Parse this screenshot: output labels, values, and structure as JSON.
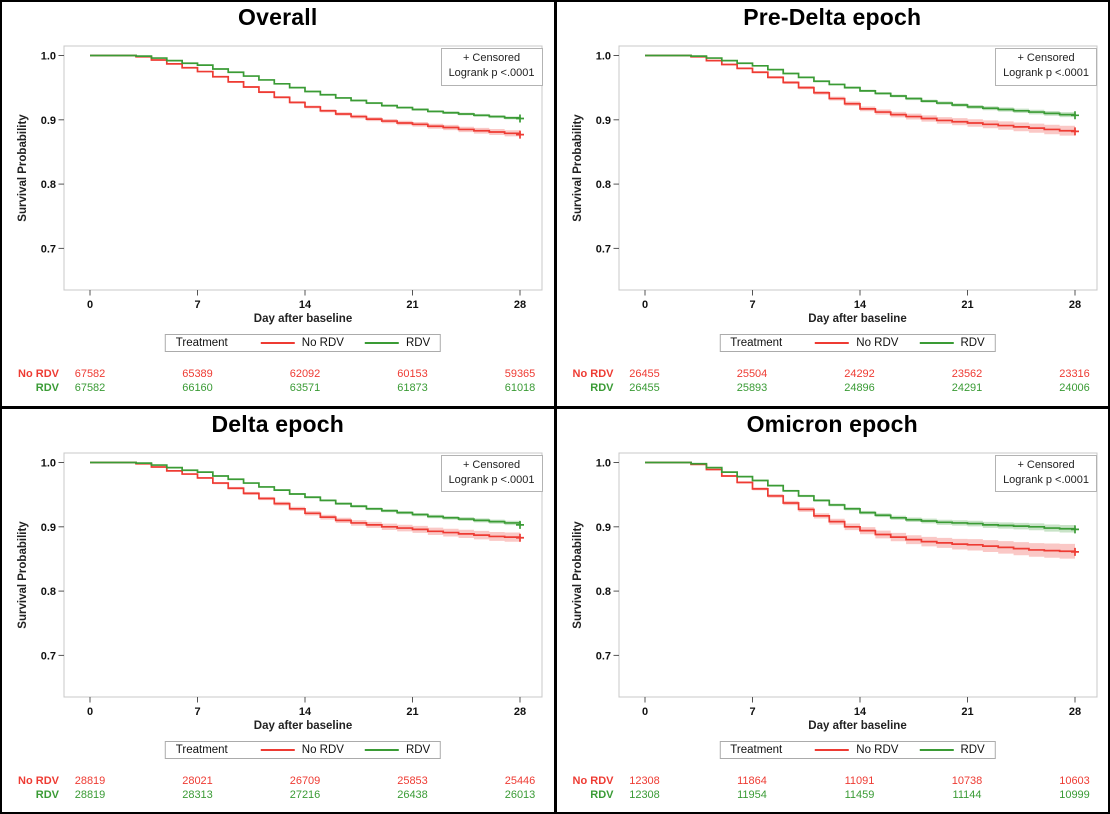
{
  "shared": {
    "censored_label": "+ Censored",
    "logrank_label": "Logrank p <.0001",
    "treatment_label": "Treatment",
    "xlabel": "Day after baseline",
    "ylabel": "Survival Probability",
    "x_tick_labels": [
      "0",
      "7",
      "14",
      "21",
      "28"
    ],
    "y_tick_labels": [
      "1.0",
      "0.9",
      "0.8",
      "0.7"
    ],
    "colors": {
      "no_rdv": "#ee3b33",
      "rdv": "#3a9b35",
      "frame": "#c8c8c8",
      "tick": "#555555"
    }
  },
  "chart_data": [
    {
      "type": "line",
      "title": "Overall",
      "xlabel": "Day after baseline",
      "ylabel": "Survival Probability",
      "x_ticks": [
        0,
        7,
        14,
        21,
        28
      ],
      "y_ticks": [
        1.0,
        0.9,
        0.8,
        0.7
      ],
      "logrank_p": "<.0001",
      "series": [
        {
          "name": "No RDV",
          "color": "#ee3b33",
          "ci_max_halfwidth": 0.005,
          "values": [
            1,
            1,
            1,
            0.998,
            0.993,
            0.987,
            0.981,
            0.975,
            0.967,
            0.959,
            0.951,
            0.943,
            0.935,
            0.927,
            0.92,
            0.914,
            0.909,
            0.905,
            0.901,
            0.898,
            0.895,
            0.893,
            0.89,
            0.888,
            0.885,
            0.883,
            0.881,
            0.879,
            0.877
          ],
          "at_risk": [
            67582,
            65389,
            62092,
            60153,
            59365
          ]
        },
        {
          "name": "RDV",
          "color": "#3a9b35",
          "ci_max_halfwidth": 0.0025,
          "values": [
            1,
            1,
            1,
            0.999,
            0.996,
            0.992,
            0.988,
            0.985,
            0.979,
            0.974,
            0.968,
            0.962,
            0.956,
            0.95,
            0.944,
            0.939,
            0.934,
            0.93,
            0.926,
            0.922,
            0.919,
            0.916,
            0.913,
            0.911,
            0.909,
            0.907,
            0.905,
            0.903,
            0.902
          ],
          "at_risk": [
            67582,
            66160,
            63571,
            61873,
            61018
          ]
        }
      ]
    },
    {
      "type": "line",
      "title": "Pre-Delta epoch",
      "xlabel": "Day after baseline",
      "ylabel": "Survival Probability",
      "x_ticks": [
        0,
        7,
        14,
        21,
        28
      ],
      "y_ticks": [
        1.0,
        0.9,
        0.8,
        0.7
      ],
      "logrank_p": "<.0001",
      "series": [
        {
          "name": "No RDV",
          "color": "#ee3b33",
          "ci_max_halfwidth": 0.008,
          "values": [
            1,
            1,
            1,
            0.998,
            0.992,
            0.986,
            0.98,
            0.974,
            0.966,
            0.958,
            0.95,
            0.942,
            0.933,
            0.925,
            0.917,
            0.912,
            0.908,
            0.905,
            0.902,
            0.899,
            0.897,
            0.895,
            0.893,
            0.891,
            0.889,
            0.887,
            0.885,
            0.883,
            0.882
          ],
          "at_risk": [
            26455,
            25504,
            24292,
            23562,
            23316
          ]
        },
        {
          "name": "RDV",
          "color": "#3a9b35",
          "ci_max_halfwidth": 0.004,
          "values": [
            1,
            1,
            1,
            0.999,
            0.996,
            0.992,
            0.988,
            0.984,
            0.978,
            0.972,
            0.966,
            0.96,
            0.955,
            0.95,
            0.945,
            0.941,
            0.937,
            0.933,
            0.929,
            0.926,
            0.923,
            0.92,
            0.918,
            0.916,
            0.914,
            0.912,
            0.91,
            0.908,
            0.907
          ],
          "at_risk": [
            26455,
            25893,
            24896,
            24291,
            24006
          ]
        }
      ]
    },
    {
      "type": "line",
      "title": "Delta epoch",
      "xlabel": "Day after baseline",
      "ylabel": "Survival Probability",
      "x_ticks": [
        0,
        7,
        14,
        21,
        28
      ],
      "y_ticks": [
        1.0,
        0.9,
        0.8,
        0.7
      ],
      "logrank_p": "<.0001",
      "series": [
        {
          "name": "No RDV",
          "color": "#ee3b33",
          "ci_max_halfwidth": 0.0075,
          "values": [
            1,
            1,
            1,
            0.998,
            0.993,
            0.987,
            0.982,
            0.976,
            0.968,
            0.96,
            0.952,
            0.944,
            0.936,
            0.928,
            0.921,
            0.915,
            0.91,
            0.906,
            0.903,
            0.9,
            0.898,
            0.896,
            0.893,
            0.891,
            0.889,
            0.887,
            0.885,
            0.884,
            0.883
          ],
          "at_risk": [
            28819,
            28021,
            26709,
            25853,
            25446
          ]
        },
        {
          "name": "RDV",
          "color": "#3a9b35",
          "ci_max_halfwidth": 0.0035,
          "values": [
            1,
            1,
            1,
            0.999,
            0.996,
            0.992,
            0.988,
            0.985,
            0.979,
            0.974,
            0.968,
            0.962,
            0.957,
            0.951,
            0.946,
            0.941,
            0.936,
            0.932,
            0.928,
            0.925,
            0.922,
            0.919,
            0.916,
            0.914,
            0.912,
            0.91,
            0.908,
            0.906,
            0.903
          ],
          "at_risk": [
            28819,
            28313,
            27216,
            26438,
            26013
          ]
        }
      ]
    },
    {
      "type": "line",
      "title": "Omicron epoch",
      "xlabel": "Day after baseline",
      "ylabel": "Survival Probability",
      "x_ticks": [
        0,
        7,
        14,
        21,
        28
      ],
      "y_ticks": [
        1.0,
        0.9,
        0.8,
        0.7
      ],
      "logrank_p": "<.0001",
      "series": [
        {
          "name": "No RDV",
          "color": "#ee3b33",
          "ci_max_halfwidth": 0.012,
          "values": [
            1,
            1,
            1,
            0.997,
            0.989,
            0.979,
            0.969,
            0.959,
            0.948,
            0.937,
            0.927,
            0.917,
            0.908,
            0.9,
            0.894,
            0.888,
            0.884,
            0.88,
            0.877,
            0.875,
            0.873,
            0.872,
            0.87,
            0.868,
            0.866,
            0.864,
            0.863,
            0.862,
            0.861
          ],
          "at_risk": [
            12308,
            11864,
            11091,
            10738,
            10603
          ]
        },
        {
          "name": "RDV",
          "color": "#3a9b35",
          "ci_max_halfwidth": 0.006,
          "values": [
            1,
            1,
            1,
            0.998,
            0.992,
            0.985,
            0.978,
            0.972,
            0.964,
            0.956,
            0.948,
            0.941,
            0.934,
            0.928,
            0.922,
            0.918,
            0.914,
            0.911,
            0.909,
            0.907,
            0.906,
            0.905,
            0.903,
            0.902,
            0.901,
            0.9,
            0.898,
            0.897,
            0.896
          ],
          "at_risk": [
            12308,
            11954,
            11459,
            11144,
            10999
          ]
        }
      ]
    }
  ]
}
